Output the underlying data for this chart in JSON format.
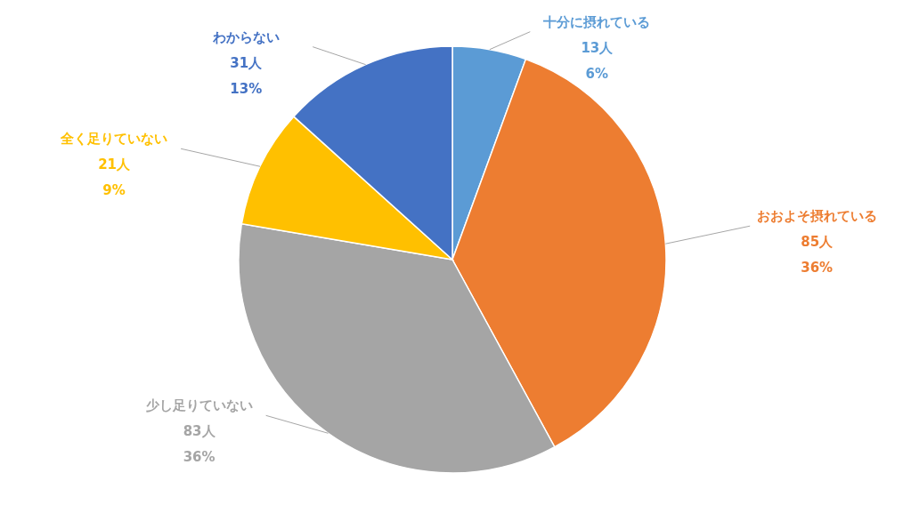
{
  "chart_data": {
    "type": "pie",
    "categories": [
      "十分に摂れている",
      "おおよそ摂れている",
      "少し足りていない",
      "全く足りていない",
      "わからない"
    ],
    "values": [
      13,
      85,
      83,
      21,
      31
    ],
    "value_labels": [
      "13人\n6%",
      "85人\n36%",
      "83人\n36%",
      "21人\n9%",
      "31人\n13%"
    ],
    "colors": [
      "#5b9bd5",
      "#ed7d31",
      "#a5a5a5",
      "#ffc000",
      "#4472c4"
    ]
  }
}
